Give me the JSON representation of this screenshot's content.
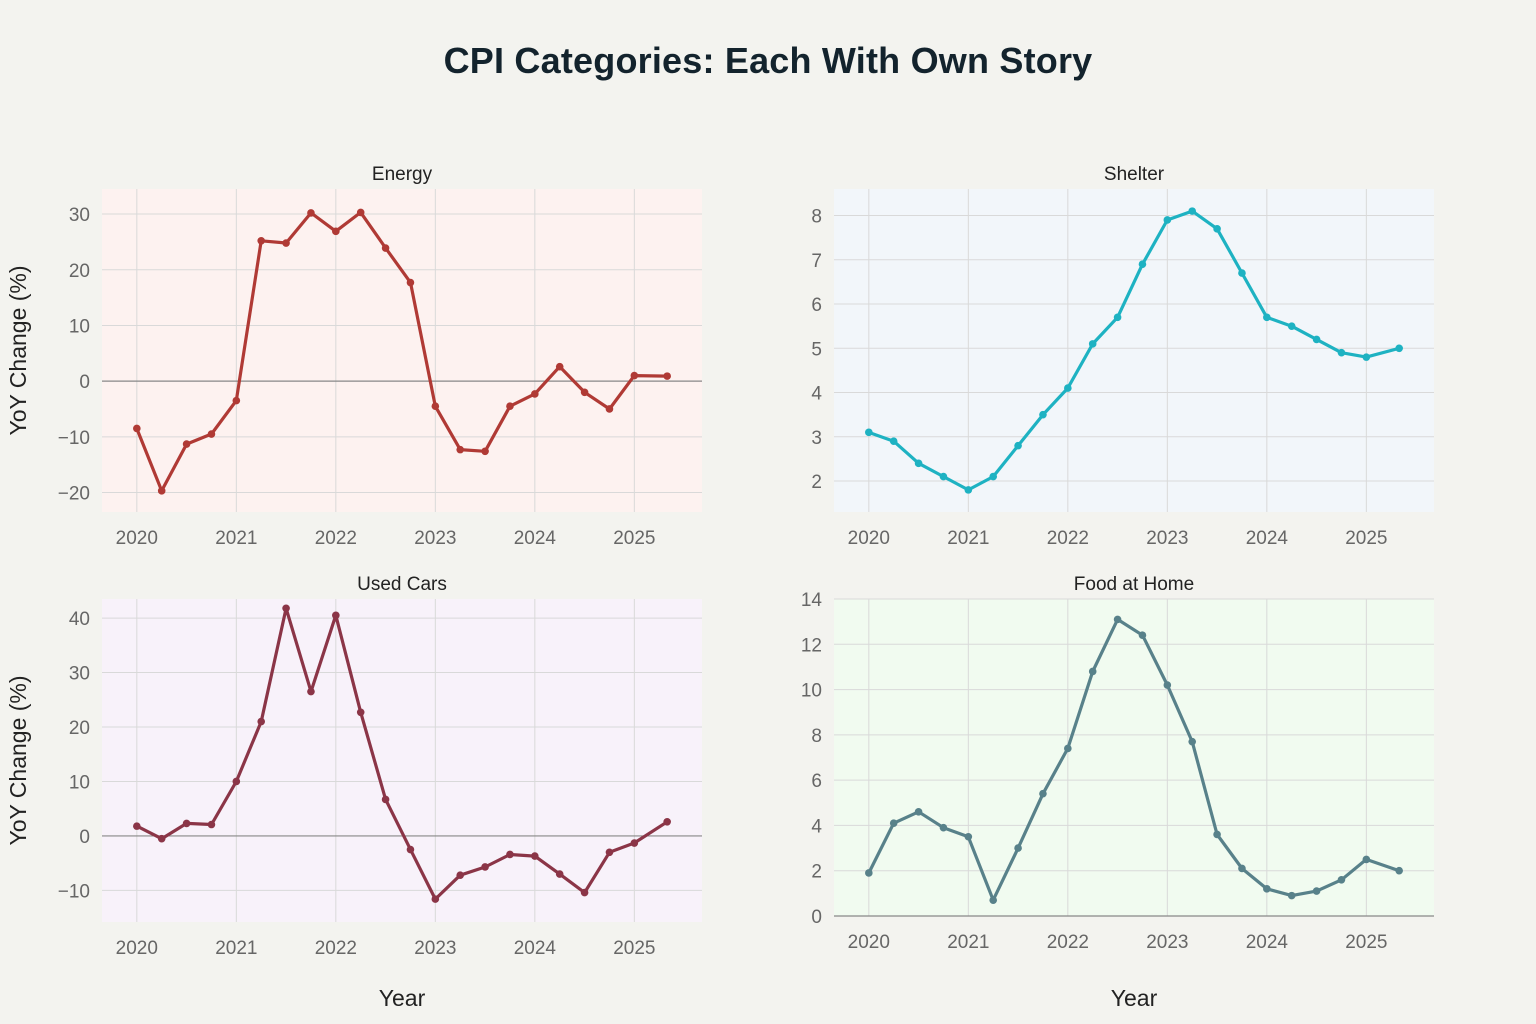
{
  "title": "CPI Categories: Each With Own Story",
  "chart_data": [
    {
      "type": "line",
      "title": "Energy",
      "xlabel": "",
      "ylabel": "YoY Change (%)",
      "bg_color": "#fdf2f0",
      "color": "#b03a35",
      "xlim": [
        2019.65,
        2025.68
      ],
      "ylim": [
        -23.5,
        34.5
      ],
      "yticks": [
        -20,
        -10,
        0,
        10,
        20,
        30
      ],
      "xticks": [
        2020,
        2021,
        2022,
        2023,
        2024,
        2025
      ],
      "grid": true,
      "zero_line": true,
      "x": [
        2020.0,
        2020.25,
        2020.5,
        2020.75,
        2021.0,
        2021.25,
        2021.5,
        2021.75,
        2022.0,
        2022.25,
        2022.5,
        2022.75,
        2023.0,
        2023.25,
        2023.5,
        2023.75,
        2024.0,
        2024.25,
        2024.5,
        2024.75,
        2025.0,
        2025.33
      ],
      "values": [
        -8.5,
        -19.7,
        -11.3,
        -9.5,
        -3.5,
        25.2,
        24.8,
        30.2,
        26.9,
        30.3,
        23.9,
        17.7,
        -4.5,
        -12.3,
        -12.6,
        -4.5,
        -2.3,
        2.6,
        -2.0,
        -5.0,
        1.0,
        0.9
      ]
    },
    {
      "type": "line",
      "title": "Shelter",
      "xlabel": "",
      "ylabel": "",
      "bg_color": "#f2f6fa",
      "color": "#1eb2c2",
      "xlim": [
        2019.65,
        2025.68
      ],
      "ylim": [
        1.3,
        8.6
      ],
      "yticks": [
        2,
        3,
        4,
        5,
        6,
        7,
        8
      ],
      "xticks": [
        2020,
        2021,
        2022,
        2023,
        2024,
        2025
      ],
      "grid": true,
      "zero_line": false,
      "x": [
        2020.0,
        2020.25,
        2020.5,
        2020.75,
        2021.0,
        2021.25,
        2021.5,
        2021.75,
        2022.0,
        2022.25,
        2022.5,
        2022.75,
        2023.0,
        2023.25,
        2023.5,
        2023.75,
        2024.0,
        2024.25,
        2024.5,
        2024.75,
        2025.0,
        2025.33
      ],
      "values": [
        3.1,
        2.9,
        2.4,
        2.1,
        1.8,
        2.1,
        2.8,
        3.5,
        4.1,
        5.1,
        5.7,
        6.9,
        7.9,
        8.1,
        7.7,
        6.7,
        5.7,
        5.5,
        5.2,
        4.9,
        4.8,
        5.0
      ]
    },
    {
      "type": "line",
      "title": "Used Cars",
      "xlabel": "Year",
      "ylabel": "YoY Change (%)",
      "bg_color": "#f8f2fa",
      "color": "#8b3547",
      "xlim": [
        2019.65,
        2025.68
      ],
      "ylim": [
        -15.8,
        43.5
      ],
      "yticks": [
        -10,
        0,
        10,
        20,
        30,
        40
      ],
      "xticks": [
        2020,
        2021,
        2022,
        2023,
        2024,
        2025
      ],
      "grid": true,
      "zero_line": true,
      "x": [
        2020.0,
        2020.25,
        2020.5,
        2020.75,
        2021.0,
        2021.25,
        2021.5,
        2021.75,
        2022.0,
        2022.25,
        2022.5,
        2022.75,
        2023.0,
        2023.25,
        2023.5,
        2023.75,
        2024.0,
        2024.25,
        2024.5,
        2024.75,
        2025.0,
        2025.33
      ],
      "values": [
        1.8,
        -0.5,
        2.3,
        2.1,
        10.0,
        21.0,
        41.8,
        26.5,
        40.5,
        22.7,
        6.7,
        -2.5,
        -11.6,
        -7.2,
        -5.7,
        -3.4,
        -3.7,
        -7.0,
        -10.4,
        -3.0,
        -1.3,
        2.6
      ]
    },
    {
      "type": "line",
      "title": "Food at Home",
      "xlabel": "Year",
      "ylabel": "",
      "bg_color": "#f1fbf0",
      "color": "#58818a",
      "xlim": [
        2019.65,
        2025.68
      ],
      "ylim": [
        0,
        14
      ],
      "yticks": [
        0,
        2,
        4,
        6,
        8,
        10,
        12,
        14
      ],
      "xticks": [
        2020,
        2021,
        2022,
        2023,
        2024,
        2025
      ],
      "grid": true,
      "zero_line": false,
      "x": [
        2020.0,
        2020.25,
        2020.5,
        2020.75,
        2021.0,
        2021.25,
        2021.5,
        2021.75,
        2022.0,
        2022.25,
        2022.5,
        2022.75,
        2023.0,
        2023.25,
        2023.5,
        2023.75,
        2024.0,
        2024.25,
        2024.5,
        2024.75,
        2025.0,
        2025.33
      ],
      "values": [
        1.9,
        4.1,
        4.6,
        3.9,
        3.5,
        0.7,
        3.0,
        5.4,
        7.4,
        10.8,
        13.1,
        12.4,
        10.2,
        7.7,
        3.6,
        2.1,
        1.2,
        0.9,
        1.1,
        1.6,
        2.5,
        2.0
      ]
    }
  ]
}
